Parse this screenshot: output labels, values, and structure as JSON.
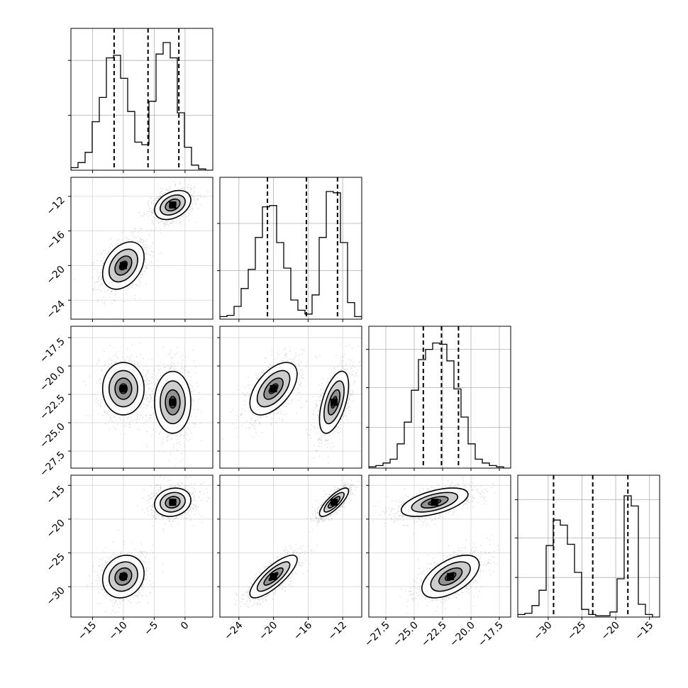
{
  "chart_data": {
    "type": "corner",
    "grid": true,
    "parameters": [
      {
        "range": [
          -18.5,
          4.5
        ],
        "ticks": [
          {
            "v": -15,
            "label": "−15"
          },
          {
            "v": -10,
            "label": "−10"
          },
          {
            "v": -5,
            "label": "−5"
          },
          {
            "v": 0,
            "label": "0"
          }
        ],
        "quantiles": [
          -11.5,
          -6.0,
          -1.0
        ],
        "hist": [
          0.02,
          0.06,
          0.14,
          0.38,
          0.57,
          0.88,
          0.9,
          0.72,
          0.46,
          0.22,
          0.2,
          0.54,
          0.91,
          1.0,
          0.88,
          0.45,
          0.18,
          0.04,
          0.01,
          0.0
        ],
        "hist_ticks": [
          0.43,
          0.86
        ],
        "modes": [
          {
            "center": -10.0,
            "sd": 1.6
          },
          {
            "center": -2.0,
            "sd": 1.4
          }
        ]
      },
      {
        "range": [
          -26.2,
          -9.8
        ],
        "ticks": [
          {
            "v": -24,
            "label": "−24"
          },
          {
            "v": -20,
            "label": "−20"
          },
          {
            "v": -16,
            "label": "−16"
          },
          {
            "v": -12,
            "label": "−12"
          }
        ],
        "quantiles": [
          -20.7,
          -16.2,
          -12.6
        ],
        "hist": [
          0.02,
          0.03,
          0.1,
          0.24,
          0.39,
          0.64,
          0.88,
          0.89,
          0.6,
          0.4,
          0.15,
          0.07,
          0.04,
          0.19,
          0.64,
          1.0,
          0.99,
          0.6,
          0.13,
          0.02
        ],
        "hist_ticks": [
          0.38,
          0.75
        ],
        "modes": [
          {
            "center": -20.0,
            "sd": 1.3
          },
          {
            "center": -13.0,
            "sd": 0.8
          }
        ]
      },
      {
        "range": [
          -29.0,
          -16.5
        ],
        "ticks": [
          {
            "v": -27.5,
            "label": "−27.5"
          },
          {
            "v": -25.0,
            "label": "−25.0"
          },
          {
            "v": -22.5,
            "label": "−22.5"
          },
          {
            "v": -20.0,
            "label": "−20.0"
          },
          {
            "v": -17.5,
            "label": "−17.5"
          }
        ],
        "quantiles": [
          -24.2,
          -22.6,
          -21.1
        ],
        "hist": [
          0.01,
          0.02,
          0.04,
          0.07,
          0.19,
          0.36,
          0.61,
          0.85,
          0.93,
          0.98,
          0.97,
          0.84,
          0.62,
          0.4,
          0.19,
          0.07,
          0.04,
          0.02,
          0.01,
          0.0
        ],
        "hist_ticks": [
          0.32,
          0.63,
          0.93
        ],
        "modes": [
          {
            "center": -22.5,
            "sd": 1.0
          },
          {
            "center": -22.5,
            "sd": 1.0
          }
        ]
      },
      {
        "range": [
          -34.5,
          -13.5
        ],
        "ticks": [
          {
            "v": -30,
            "label": "−30"
          },
          {
            "v": -25,
            "label": "−25"
          },
          {
            "v": -20,
            "label": "−20"
          },
          {
            "v": -15,
            "label": "−15"
          }
        ],
        "quantiles": [
          -29.2,
          -23.4,
          -18.2
        ],
        "hist": [
          0.02,
          0.03,
          0.09,
          0.21,
          0.56,
          0.76,
          0.72,
          0.57,
          0.35,
          0.06,
          0.02,
          0.01,
          0.01,
          0.04,
          0.3,
          0.95,
          0.87,
          0.1,
          0.02,
          0.0
        ],
        "hist_ticks": [
          0.31,
          0.62,
          0.92
        ],
        "modes": [
          {
            "center": -28.5,
            "sd": 1.5
          },
          {
            "center": -17.5,
            "sd": 1.0
          }
        ]
      }
    ],
    "pair_axes": {
      "y_ticks": [
        null,
        [
          {
            "v": -12,
            "label": "−12"
          },
          {
            "v": -16,
            "label": "−16"
          },
          {
            "v": -20,
            "label": "−20"
          },
          {
            "v": -24,
            "label": "−24"
          }
        ],
        [
          {
            "v": -17.5,
            "label": "−17.5"
          },
          {
            "v": -20.0,
            "label": "−20.0"
          },
          {
            "v": -22.5,
            "label": "−22.5"
          },
          {
            "v": -25.0,
            "label": "−25.0"
          },
          {
            "v": -27.5,
            "label": "−27.5"
          }
        ],
        [
          {
            "v": -15,
            "label": "−15"
          },
          {
            "v": -20,
            "label": "−20"
          },
          {
            "v": -25,
            "label": "−25"
          },
          {
            "v": -30,
            "label": "−30"
          }
        ]
      ]
    }
  }
}
